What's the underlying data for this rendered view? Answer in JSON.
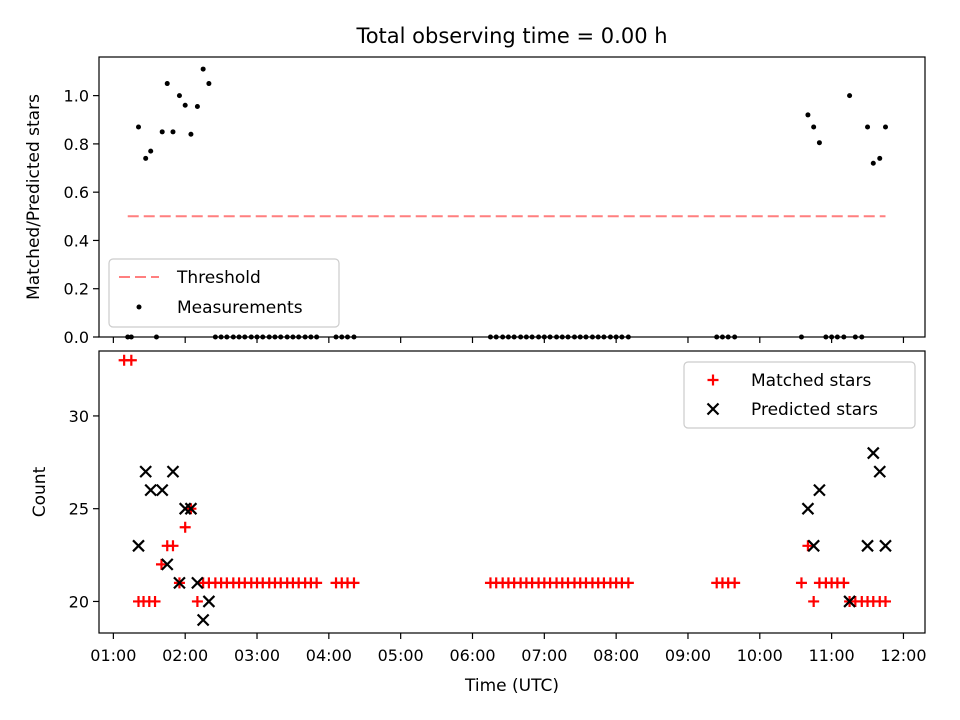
{
  "title": "Total observing time = 0.00 h",
  "colors": {
    "threshold": "#ff7f7f",
    "measurements": "#000000",
    "matched": "#ff0000",
    "predicted": "#000000"
  },
  "chart_data": [
    {
      "type": "scatter",
      "panel": "top",
      "title": "Total observing time = 0.00 h",
      "xlabel": "",
      "ylabel": "Matched/Predicted stars",
      "xlim": [
        0.8,
        12.3
      ],
      "ylim": [
        0.0,
        1.16
      ],
      "yticks": [
        0.0,
        0.2,
        0.4,
        0.6,
        0.8,
        1.0
      ],
      "yticklabels": [
        "0.0",
        "0.2",
        "0.4",
        "0.6",
        "0.8",
        "1.0"
      ],
      "legend_position": "lower-left",
      "threshold": {
        "name": "Threshold",
        "value": 0.5,
        "x_range": [
          1.2,
          11.75
        ],
        "style": "dashed"
      },
      "series": [
        {
          "name": "Measurements",
          "points": [
            [
              1.2,
              0.0
            ],
            [
              1.25,
              0.0
            ],
            [
              1.6,
              0.0
            ],
            [
              1.35,
              0.87
            ],
            [
              1.45,
              0.74
            ],
            [
              1.52,
              0.77
            ],
            [
              1.68,
              0.85
            ],
            [
              1.75,
              1.05
            ],
            [
              1.83,
              0.85
            ],
            [
              1.92,
              1.0
            ],
            [
              2.0,
              0.96
            ],
            [
              2.08,
              0.84
            ],
            [
              2.17,
              0.955
            ],
            [
              2.25,
              1.11
            ],
            [
              2.33,
              1.05
            ],
            [
              2.42,
              0.0
            ],
            [
              2.5,
              0.0
            ],
            [
              2.58,
              0.0
            ],
            [
              2.67,
              0.0
            ],
            [
              2.75,
              0.0
            ],
            [
              2.83,
              0.0
            ],
            [
              2.92,
              0.0
            ],
            [
              3.0,
              0.0
            ],
            [
              3.08,
              0.0
            ],
            [
              3.17,
              0.0
            ],
            [
              3.25,
              0.0
            ],
            [
              3.33,
              0.0
            ],
            [
              3.42,
              0.0
            ],
            [
              3.5,
              0.0
            ],
            [
              3.58,
              0.0
            ],
            [
              3.67,
              0.0
            ],
            [
              3.75,
              0.0
            ],
            [
              3.83,
              0.0
            ],
            [
              4.1,
              0.0
            ],
            [
              4.18,
              0.0
            ],
            [
              4.26,
              0.0
            ],
            [
              4.35,
              0.0
            ],
            [
              6.25,
              0.0
            ],
            [
              6.33,
              0.0
            ],
            [
              6.42,
              0.0
            ],
            [
              6.5,
              0.0
            ],
            [
              6.58,
              0.0
            ],
            [
              6.67,
              0.0
            ],
            [
              6.75,
              0.0
            ],
            [
              6.83,
              0.0
            ],
            [
              6.92,
              0.0
            ],
            [
              7.0,
              0.0
            ],
            [
              7.08,
              0.0
            ],
            [
              7.17,
              0.0
            ],
            [
              7.25,
              0.0
            ],
            [
              7.33,
              0.0
            ],
            [
              7.42,
              0.0
            ],
            [
              7.5,
              0.0
            ],
            [
              7.58,
              0.0
            ],
            [
              7.67,
              0.0
            ],
            [
              7.75,
              0.0
            ],
            [
              7.83,
              0.0
            ],
            [
              7.92,
              0.0
            ],
            [
              8.0,
              0.0
            ],
            [
              8.08,
              0.0
            ],
            [
              8.17,
              0.0
            ],
            [
              9.4,
              0.0
            ],
            [
              9.48,
              0.0
            ],
            [
              9.56,
              0.0
            ],
            [
              9.65,
              0.0
            ],
            [
              10.58,
              0.0
            ],
            [
              10.67,
              0.92
            ],
            [
              10.75,
              0.87
            ],
            [
              10.83,
              0.805
            ],
            [
              10.92,
              0.0
            ],
            [
              11.0,
              0.0
            ],
            [
              11.08,
              0.0
            ],
            [
              11.17,
              0.0
            ],
            [
              11.25,
              1.0
            ],
            [
              11.33,
              0.0
            ],
            [
              11.42,
              0.0
            ],
            [
              11.5,
              0.87
            ],
            [
              11.58,
              0.72
            ],
            [
              11.67,
              0.74
            ],
            [
              11.75,
              0.87
            ]
          ]
        }
      ]
    },
    {
      "type": "scatter",
      "panel": "bottom",
      "xlabel": "Time (UTC)",
      "ylabel": "Count",
      "xlim": [
        0.8,
        12.3
      ],
      "ylim": [
        18.3,
        33.5
      ],
      "yticks": [
        20,
        25,
        30
      ],
      "yticklabels": [
        "20",
        "25",
        "30"
      ],
      "xticks": [
        1,
        2,
        3,
        4,
        5,
        6,
        7,
        8,
        9,
        10,
        11,
        12
      ],
      "xticklabels": [
        "01:00",
        "02:00",
        "03:00",
        "04:00",
        "05:00",
        "06:00",
        "07:00",
        "08:00",
        "09:00",
        "10:00",
        "11:00",
        "12:00"
      ],
      "legend_position": "upper-right",
      "series": [
        {
          "name": "Matched stars",
          "marker": "plus",
          "points": [
            [
              1.15,
              33
            ],
            [
              1.25,
              33
            ],
            [
              1.35,
              20
            ],
            [
              1.42,
              20
            ],
            [
              1.5,
              20
            ],
            [
              1.58,
              20
            ],
            [
              1.67,
              22
            ],
            [
              1.75,
              23
            ],
            [
              1.83,
              23
            ],
            [
              1.92,
              21
            ],
            [
              2.0,
              24
            ],
            [
              2.08,
              25
            ],
            [
              2.17,
              20
            ],
            [
              2.25,
              21
            ],
            [
              2.33,
              21
            ],
            [
              2.42,
              21
            ],
            [
              2.5,
              21
            ],
            [
              2.58,
              21
            ],
            [
              2.67,
              21
            ],
            [
              2.75,
              21
            ],
            [
              2.83,
              21
            ],
            [
              2.92,
              21
            ],
            [
              3.0,
              21
            ],
            [
              3.08,
              21
            ],
            [
              3.17,
              21
            ],
            [
              3.25,
              21
            ],
            [
              3.33,
              21
            ],
            [
              3.42,
              21
            ],
            [
              3.5,
              21
            ],
            [
              3.58,
              21
            ],
            [
              3.67,
              21
            ],
            [
              3.75,
              21
            ],
            [
              3.83,
              21
            ],
            [
              4.1,
              21
            ],
            [
              4.18,
              21
            ],
            [
              4.26,
              21
            ],
            [
              4.35,
              21
            ],
            [
              6.25,
              21
            ],
            [
              6.33,
              21
            ],
            [
              6.42,
              21
            ],
            [
              6.5,
              21
            ],
            [
              6.58,
              21
            ],
            [
              6.67,
              21
            ],
            [
              6.75,
              21
            ],
            [
              6.83,
              21
            ],
            [
              6.92,
              21
            ],
            [
              7.0,
              21
            ],
            [
              7.08,
              21
            ],
            [
              7.17,
              21
            ],
            [
              7.25,
              21
            ],
            [
              7.33,
              21
            ],
            [
              7.42,
              21
            ],
            [
              7.5,
              21
            ],
            [
              7.58,
              21
            ],
            [
              7.67,
              21
            ],
            [
              7.75,
              21
            ],
            [
              7.83,
              21
            ],
            [
              7.92,
              21
            ],
            [
              8.0,
              21
            ],
            [
              8.08,
              21
            ],
            [
              8.17,
              21
            ],
            [
              9.4,
              21
            ],
            [
              9.48,
              21
            ],
            [
              9.56,
              21
            ],
            [
              9.65,
              21
            ],
            [
              10.58,
              21
            ],
            [
              10.67,
              23
            ],
            [
              10.75,
              20
            ],
            [
              10.83,
              21
            ],
            [
              10.92,
              21
            ],
            [
              11.0,
              21
            ],
            [
              11.08,
              21
            ],
            [
              11.17,
              21
            ],
            [
              11.25,
              20
            ],
            [
              11.33,
              20
            ],
            [
              11.42,
              20
            ],
            [
              11.5,
              20
            ],
            [
              11.58,
              20
            ],
            [
              11.67,
              20
            ],
            [
              11.75,
              20
            ]
          ]
        },
        {
          "name": "Predicted stars",
          "marker": "x",
          "points": [
            [
              1.35,
              23
            ],
            [
              1.45,
              27
            ],
            [
              1.52,
              26
            ],
            [
              1.68,
              26
            ],
            [
              1.75,
              22
            ],
            [
              1.83,
              27
            ],
            [
              1.92,
              21
            ],
            [
              2.0,
              25
            ],
            [
              2.08,
              25
            ],
            [
              2.17,
              21
            ],
            [
              2.25,
              19
            ],
            [
              2.33,
              20
            ],
            [
              10.67,
              25
            ],
            [
              10.75,
              23
            ],
            [
              10.83,
              26
            ],
            [
              11.25,
              20
            ],
            [
              11.5,
              23
            ],
            [
              11.58,
              28
            ],
            [
              11.67,
              27
            ],
            [
              11.75,
              23
            ]
          ]
        }
      ]
    }
  ]
}
